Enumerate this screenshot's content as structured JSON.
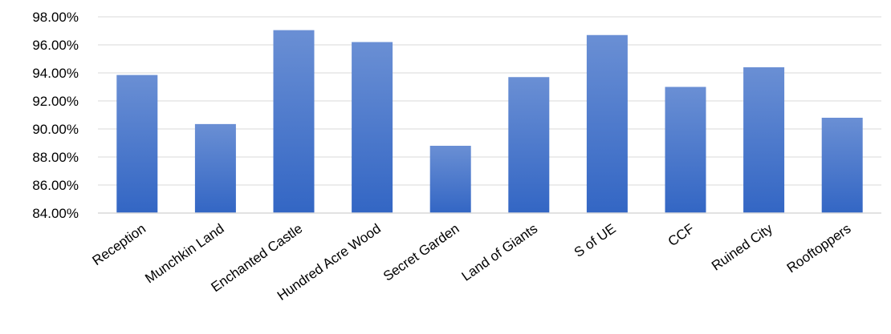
{
  "chart_data": {
    "type": "bar",
    "categories": [
      "Reception",
      "Munchkin Land",
      "Enchanted Castle",
      "Hundred Acre Wood",
      "Secret Garden",
      "Land of Giants",
      "S of UE",
      "CCF",
      "Ruined City",
      "Rooftoppers"
    ],
    "values": [
      93.85,
      90.35,
      97.05,
      96.2,
      88.8,
      93.7,
      96.7,
      93.0,
      94.4,
      90.8
    ],
    "ylim": [
      84,
      98
    ],
    "yticks": [
      84,
      86,
      88,
      90,
      92,
      94,
      96,
      98
    ],
    "ytick_labels": [
      "84.00%",
      "86.00%",
      "88.00%",
      "90.00%",
      "92.00%",
      "94.00%",
      "96.00%",
      "98.00%"
    ],
    "grid": true,
    "legend": "none",
    "colors": {
      "bar_top": "#6a8fd4",
      "bar_bottom": "#3366c4"
    }
  }
}
